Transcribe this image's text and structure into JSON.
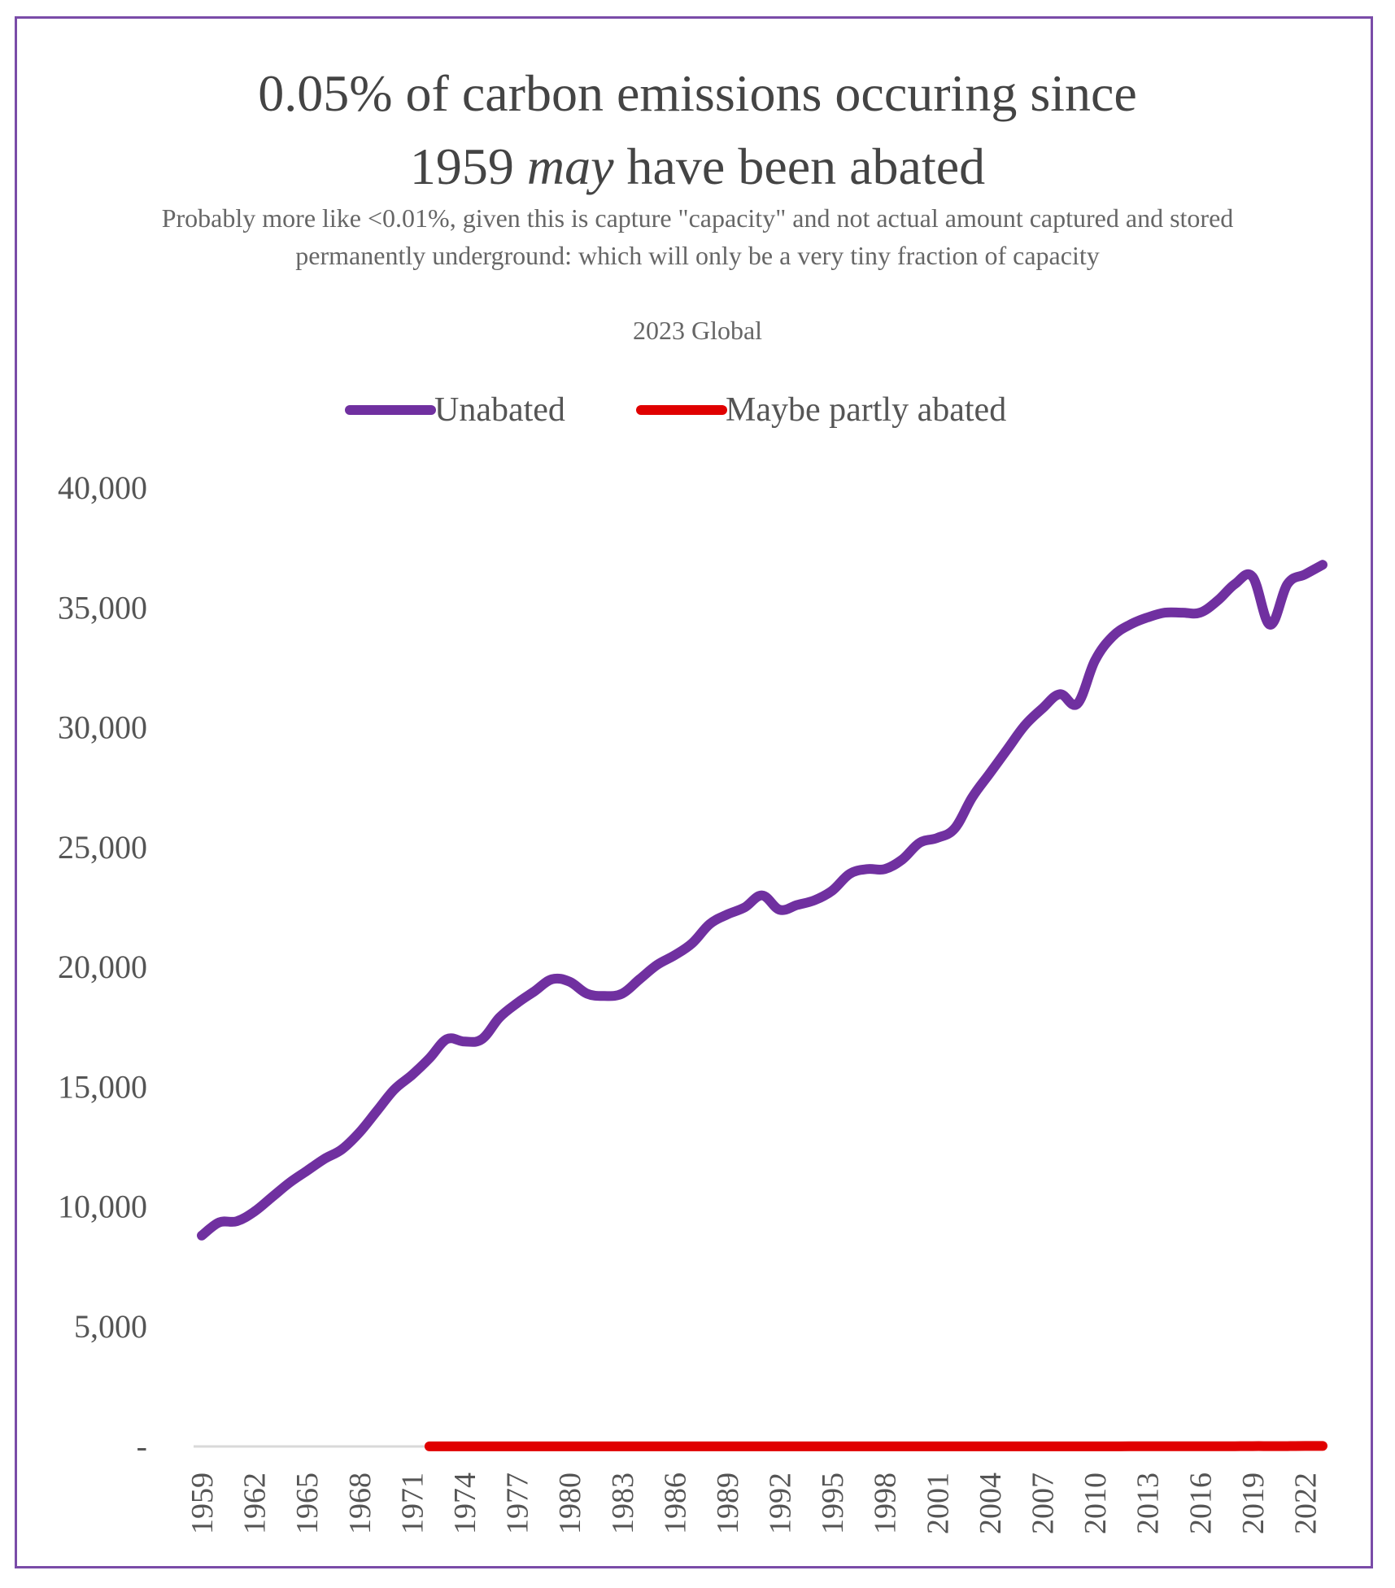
{
  "title": {
    "line1": "0.05% of carbon emissions occuring since",
    "line2_before": "1959 ",
    "line2_italic": "may",
    "line2_after": " have been abated"
  },
  "subtitle": "Probably more like <0.01%, given this is capture \"capacity\" and not actual amount captured and stored permanently underground: which will only be a very tiny fraction of capacity",
  "subtitle2": "2023 Global",
  "colors": {
    "unabated": "#7030a0",
    "abated": "#e00000",
    "frame": "#7a4ca8",
    "zero_line": "#d9d9d9"
  },
  "chart_data": {
    "type": "line",
    "title": "0.05% of carbon emissions occuring since 1959 may have been abated",
    "subtitle": "Probably more like <0.01%, given this is capture \"capacity\" and not actual amount captured and stored permanently underground: which will only be a very tiny fraction of capacity",
    "xlabel": "",
    "ylabel": "",
    "ylim": [
      0,
      40000
    ],
    "grid": false,
    "legend": "top",
    "y_tick_labels": [
      "-",
      "5,000",
      "10,000",
      "15,000",
      "20,000",
      "25,000",
      "30,000",
      "35,000",
      "40,000"
    ],
    "y_ticks": [
      0,
      5000,
      10000,
      15000,
      20000,
      25000,
      30000,
      35000,
      40000
    ],
    "x_tick_labels": [
      "1959",
      "1962",
      "1965",
      "1968",
      "1971",
      "1974",
      "1977",
      "1980",
      "1983",
      "1986",
      "1989",
      "1992",
      "1995",
      "1998",
      "2001",
      "2004",
      "2007",
      "2010",
      "2013",
      "2016",
      "2019",
      "2022"
    ],
    "x": [
      1959,
      1960,
      1961,
      1962,
      1963,
      1964,
      1965,
      1966,
      1967,
      1968,
      1969,
      1970,
      1971,
      1972,
      1973,
      1974,
      1975,
      1976,
      1977,
      1978,
      1979,
      1980,
      1981,
      1982,
      1983,
      1984,
      1985,
      1986,
      1987,
      1988,
      1989,
      1990,
      1991,
      1992,
      1993,
      1994,
      1995,
      1996,
      1997,
      1998,
      1999,
      2000,
      2001,
      2002,
      2003,
      2004,
      2005,
      2006,
      2007,
      2008,
      2009,
      2010,
      2011,
      2012,
      2013,
      2014,
      2015,
      2016,
      2017,
      2018,
      2019,
      2020,
      2021,
      2022,
      2023
    ],
    "series": [
      {
        "name": "Unabated",
        "values": [
          8800,
          9350,
          9400,
          9800,
          10400,
          11000,
          11500,
          12000,
          12400,
          13100,
          14000,
          14900,
          15500,
          16200,
          17000,
          16900,
          17000,
          17900,
          18500,
          19000,
          19500,
          19400,
          18900,
          18800,
          18900,
          19500,
          20100,
          20500,
          21000,
          21800,
          22200,
          22500,
          23000,
          22400,
          22600,
          22800,
          23200,
          23900,
          24100,
          24100,
          24500,
          25200,
          25400,
          25800,
          27100,
          28100,
          29100,
          30100,
          30800,
          31400,
          31000,
          32800,
          33800,
          34300,
          34600,
          34800,
          34800,
          34800,
          35300,
          36000,
          36300,
          34300,
          36000,
          36400,
          36800
        ]
      },
      {
        "name": "Maybe partly abated",
        "values": [
          0,
          0,
          0,
          0,
          0,
          0,
          0,
          0,
          0,
          0,
          0,
          0,
          0,
          5,
          5,
          5,
          5,
          5,
          5,
          5,
          5,
          5,
          5,
          5,
          5,
          5,
          5,
          5,
          5,
          5,
          5,
          5,
          5,
          5,
          5,
          5,
          5,
          5,
          5,
          5,
          5,
          5,
          5,
          5,
          5,
          5,
          5,
          5,
          5,
          5,
          5,
          5,
          5,
          10,
          10,
          10,
          10,
          10,
          10,
          10,
          15,
          15,
          15,
          20,
          20
        ]
      }
    ]
  }
}
